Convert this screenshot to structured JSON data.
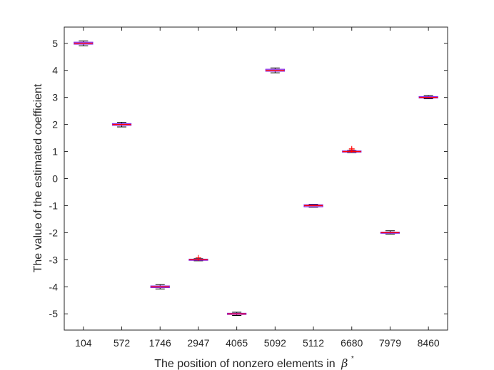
{
  "chart_data": {
    "type": "boxplot",
    "title": "",
    "xlabel": "The position of nonzero elements in",
    "xlabel_symbol": "β",
    "xlabel_symbol_sup": "*",
    "ylabel": "The value of the estimated coefficient",
    "ylim": [
      -5.6,
      5.6
    ],
    "yticks": [
      -5,
      -4,
      -3,
      -2,
      -1,
      0,
      1,
      2,
      3,
      4,
      5
    ],
    "ytick_labels": [
      "-5",
      "-4",
      "-3",
      "-2",
      "-1",
      "0",
      "1",
      "2",
      "3",
      "4",
      "5"
    ],
    "categories": [
      "104",
      "572",
      "1746",
      "2947",
      "4065",
      "5092",
      "5112",
      "6680",
      "7979",
      "8460"
    ],
    "boxes": [
      {
        "median": 5.0,
        "q1": 4.97,
        "q3": 5.04,
        "whisker_low": 4.91,
        "whisker_high": 5.09,
        "outliers": []
      },
      {
        "median": 2.0,
        "q1": 1.97,
        "q3": 2.03,
        "whisker_low": 1.91,
        "whisker_high": 2.08,
        "outliers": []
      },
      {
        "median": -4.0,
        "q1": -4.03,
        "q3": -3.97,
        "whisker_low": -4.08,
        "whisker_high": -3.92,
        "outliers": []
      },
      {
        "median": -3.0,
        "q1": -3.02,
        "q3": -2.98,
        "whisker_low": -3.04,
        "whisker_high": -2.96,
        "outliers": [
          -2.93
        ]
      },
      {
        "median": -5.0,
        "q1": -5.02,
        "q3": -4.98,
        "whisker_low": -5.06,
        "whisker_high": -4.94,
        "outliers": []
      },
      {
        "median": 4.0,
        "q1": 3.97,
        "q3": 4.04,
        "whisker_low": 3.91,
        "whisker_high": 4.09,
        "outliers": []
      },
      {
        "median": -1.0,
        "q1": -1.04,
        "q3": -0.97,
        "whisker_low": -1.06,
        "whisker_high": -0.95,
        "outliers": []
      },
      {
        "median": 1.0,
        "q1": 0.98,
        "q3": 1.02,
        "whisker_low": 0.96,
        "whisker_high": 1.04,
        "outliers": [
          1.06,
          1.1
        ]
      },
      {
        "median": -2.0,
        "q1": -2.02,
        "q3": -1.98,
        "whisker_low": -2.05,
        "whisker_high": -1.93,
        "outliers": []
      },
      {
        "median": 3.0,
        "q1": 2.98,
        "q3": 3.03,
        "whisker_low": 2.95,
        "whisker_high": 3.07,
        "outliers": []
      }
    ],
    "grid": false,
    "colors": {
      "box": "#8a2be2",
      "median": "#ff0000",
      "whisker": "#000000",
      "outlier": "#ff0000",
      "axis": "#262626"
    }
  }
}
